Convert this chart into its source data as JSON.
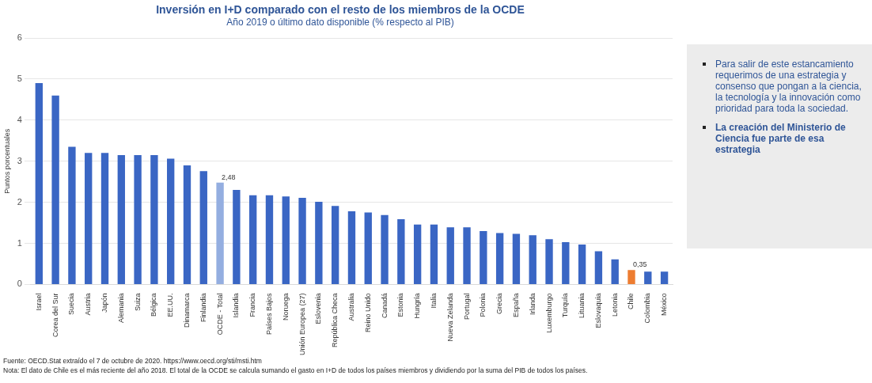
{
  "chart_data": {
    "type": "bar",
    "title": "Inversión en I+D comparado con el resto de los miembros de la OCDE",
    "subtitle": "Año 2019 o último dato disponible (% respecto al PIB)",
    "ylabel": "Puntos porcentuales",
    "categories": [
      "Israel",
      "Corea del Sur",
      "Suecia",
      "Austria",
      "Japón",
      "Alemania",
      "Suiza",
      "Bélgica",
      "EE.UU.",
      "Dinamarca",
      "Finlandia",
      "OCDE - Total",
      "Islandia",
      "Francia",
      "Países Bajos",
      "Noruega",
      "Unión Europea (27)",
      "Eslovenia",
      "República Checa",
      "Australia",
      "Reino Unido",
      "Canadá",
      "Estonia",
      "Hungría",
      "Italia",
      "Nueva Zelanda",
      "Portugal",
      "Polonia",
      "Grecia",
      "España",
      "Irlanda",
      "Luxemburgo",
      "Turquía",
      "Lituania",
      "Eslovaquia",
      "Letonia",
      "Chile",
      "Colombia",
      "México"
    ],
    "values": [
      4.9,
      4.6,
      3.35,
      3.2,
      3.2,
      3.15,
      3.15,
      3.15,
      3.06,
      2.9,
      2.76,
      2.48,
      2.3,
      2.17,
      2.17,
      2.14,
      2.11,
      2.01,
      1.91,
      1.78,
      1.75,
      1.69,
      1.59,
      1.46,
      1.46,
      1.39,
      1.39,
      1.3,
      1.25,
      1.23,
      1.2,
      1.1,
      1.03,
      0.97,
      0.81,
      0.61,
      0.35,
      0.31,
      0.31
    ],
    "colors": [
      "#3a66c4",
      "#3a66c4",
      "#3a66c4",
      "#3a66c4",
      "#3a66c4",
      "#3a66c4",
      "#3a66c4",
      "#3a66c4",
      "#3a66c4",
      "#3a66c4",
      "#3a66c4",
      "#94aee0",
      "#3a66c4",
      "#3a66c4",
      "#3a66c4",
      "#3a66c4",
      "#3a66c4",
      "#3a66c4",
      "#3a66c4",
      "#3a66c4",
      "#3a66c4",
      "#3a66c4",
      "#3a66c4",
      "#3a66c4",
      "#3a66c4",
      "#3a66c4",
      "#3a66c4",
      "#3a66c4",
      "#3a66c4",
      "#3a66c4",
      "#3a66c4",
      "#3a66c4",
      "#3a66c4",
      "#3a66c4",
      "#3a66c4",
      "#3a66c4",
      "#ed7d31",
      "#3a66c4",
      "#3a66c4"
    ],
    "value_labels": [
      null,
      null,
      null,
      null,
      null,
      null,
      null,
      null,
      null,
      null,
      null,
      "2,48",
      null,
      null,
      null,
      null,
      null,
      null,
      null,
      null,
      null,
      null,
      null,
      null,
      null,
      null,
      null,
      null,
      null,
      null,
      null,
      null,
      null,
      null,
      null,
      null,
      "0,35",
      null,
      null
    ],
    "ylim": [
      0,
      6
    ],
    "yticks": [
      0,
      1,
      2,
      3,
      4,
      5,
      6
    ],
    "grid": "y",
    "legend": false,
    "annotations": [
      "Para salir de este estancamiento requerimos de una estrategia y consenso que pongan a la ciencia, la tecnología y la innovación como prioridad para toda la sociedad.",
      "La creación del Ministerio de Ciencia fue parte de esa estrategia",
      "Fuente: OECD.Stat extraído el 7 de octubre de 2020. https://www.oecd.org/sti/msti.htm",
      "Nota: El dato de Chile es el más reciente del año 2018. El total de la OCDE se calcula sumando el gasto en I+D de todos los países miembros y dividiendo por la suma del PIB de todos los países."
    ]
  }
}
